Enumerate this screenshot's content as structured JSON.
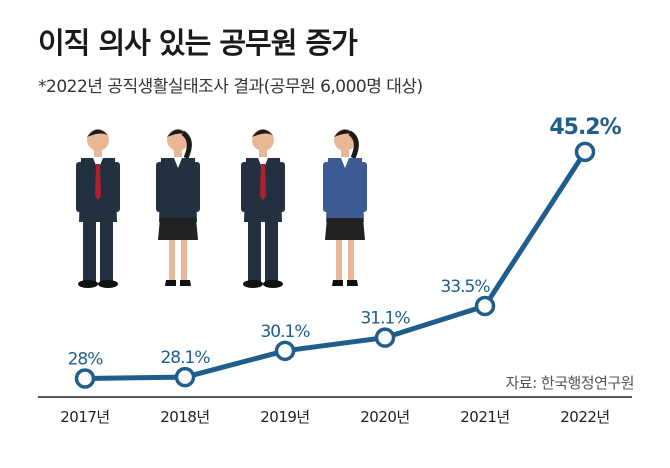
{
  "title": "이직 의사 있는 공무원 증가",
  "subtitle": "*2022년 공직생활실태조사 결과(공무원 6,000명 대상)",
  "source": "자료: 한국행정연구원",
  "colors": {
    "line": "#1f5d8c",
    "axis": "#222222",
    "suit": "#22303f",
    "skin": "#e8b896",
    "tie": "#b21f2d",
    "blouse_blue": "#3b5b92",
    "skirt": "#222222"
  },
  "illustration": {
    "figures": [
      "man-suit-red-tie",
      "woman-suit-skirt",
      "man-suit-red-tie",
      "woman-blue-blazer-skirt"
    ]
  },
  "chart_data": {
    "type": "line",
    "categories": [
      "2017년",
      "2018년",
      "2019년",
      "2020년",
      "2021년",
      "2022년"
    ],
    "values": [
      28,
      28.1,
      30.1,
      31.1,
      33.5,
      45.2
    ],
    "data_labels": [
      "28%",
      "28.1%",
      "30.1%",
      "31.1%",
      "33.5%",
      "45.2%"
    ],
    "ylim": [
      25,
      48
    ],
    "grid": false,
    "legend": "none"
  }
}
